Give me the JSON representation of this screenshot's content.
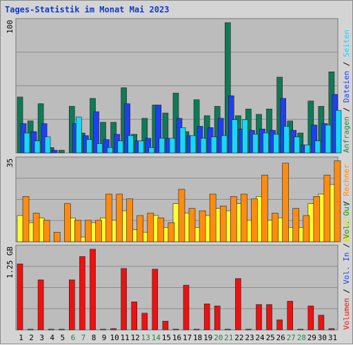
{
  "title": "Tages-Statistik im Monat Mai 2023",
  "colors": {
    "anfragen": "#0f7a57",
    "dateien": "#1e40f0",
    "seiten": "#19d6ff",
    "besuche": "#ffff33",
    "rechner": "#ff8c10",
    "volumen": "#ee1111",
    "weekend_label": "#1a8a45",
    "weekday_label": "#000000",
    "title": "#0f39d4"
  },
  "legend_right_top": [
    {
      "text": "Anfragen",
      "color": "#1a8a45"
    },
    {
      "text": " / ",
      "color": "#000000"
    },
    {
      "text": "Dateien",
      "color": "#1e40f0"
    },
    {
      "text": " / ",
      "color": "#000000"
    },
    {
      "text": "Seiten",
      "color": "#19d6ff"
    }
  ],
  "legend_right_middle": [
    {
      "text": "Besuche",
      "color": "#e0e010"
    },
    {
      "text": " / ",
      "color": "#000000"
    },
    {
      "text": "Rechner",
      "color": "#ff8c10"
    }
  ],
  "legend_right_bottom": [
    {
      "text": "Volumen",
      "color": "#ee1111"
    },
    {
      "text": " / ",
      "color": "#000000"
    },
    {
      "text": "Vol. In",
      "color": "#1e40f0"
    },
    {
      "text": " / ",
      "color": "#000000"
    },
    {
      "text": "Vol. Out",
      "color": "#1a8a45"
    }
  ],
  "chart_data": {
    "type": "bar",
    "title": "Tages-Statistik im Monat Mai 2023",
    "categories": [
      "1",
      "2",
      "3",
      "4",
      "5",
      "6",
      "7",
      "8",
      "9",
      "10",
      "11",
      "12",
      "13",
      "14",
      "15",
      "16",
      "17",
      "18",
      "19",
      "20",
      "21",
      "22",
      "23",
      "24",
      "25",
      "26",
      "27",
      "28",
      "29",
      "30",
      "31"
    ],
    "weekend_days": [
      "6",
      "7",
      "13",
      "14",
      "20",
      "21",
      "27",
      "28"
    ],
    "panels": [
      {
        "id": "hits",
        "max_label": "100",
        "ylim": [
          0,
          100
        ],
        "series": [
          {
            "name": "Anfragen",
            "values": [
              42,
              24,
              37,
              4,
              2,
              35,
              15,
              41,
              23,
              23,
              49,
              14,
              26,
              36,
              30,
              45,
              16,
              40,
              28,
              35,
              98,
              28,
              33,
              29,
              33,
              57,
              24,
              15,
              39,
              35,
              61
            ]
          },
          {
            "name": "Dateien",
            "values": [
              22,
              16,
              22,
              2,
              0,
              22,
              13,
              31,
              10,
              14,
              37,
              9,
              11,
              36,
              11,
              26,
              13,
              20,
              19,
              26,
              43,
              18,
              17,
              18,
              17,
              41,
              17,
              6,
              21,
              22,
              44
            ]
          },
          {
            "name": "Seiten",
            "values": [
              15,
              9,
              12,
              0,
              0,
              27,
              10,
              7,
              4,
              9,
              13,
              9,
              4,
              11,
              11,
              19,
              13,
              11,
              12,
              13,
              25,
              25,
              14,
              15,
              14,
              20,
              12,
              6,
              9,
              21,
              32
            ]
          }
        ]
      },
      {
        "id": "visits",
        "max_label": "35",
        "ylim": [
          0,
          35
        ],
        "series": [
          {
            "name": "Besuche",
            "values": [
              11,
              8,
              10,
              0,
              0,
              10,
              2,
              8,
              10,
              9,
              13,
              5,
              4,
              11,
              6,
              16,
              12,
              6,
              11,
              14,
              13,
              16,
              9,
              19,
              9,
              10,
              6,
              6,
              16,
              20,
              24
            ]
          },
          {
            "name": "Rechner",
            "values": [
              19,
              12,
              9,
              4,
              16,
              9,
              9,
              9,
              20,
              20,
              18,
              11,
              12,
              10,
              8,
              22,
              14,
              13,
              20,
              15,
              19,
              20,
              18,
              28,
              12,
              33,
              14,
              11,
              19,
              28,
              34
            ]
          }
        ]
      },
      {
        "id": "volume",
        "max_label": "1.25 GB",
        "ylim": [
          0,
          1.25
        ],
        "series": [
          {
            "name": "Volumen",
            "values": [
              0.99,
              0.01,
              0.75,
              0.01,
              0.01,
              0.75,
              1.1,
              1.21,
              0.01,
              0.02,
              0.92,
              0.42,
              0.25,
              0.91,
              0.13,
              0.01,
              0.67,
              0.01,
              0.39,
              0.36,
              0.01,
              0.77,
              0.01,
              0.38,
              0.38,
              0.15,
              0.43,
              0.01,
              0.36,
              0.22,
              0.02
            ]
          }
        ]
      }
    ]
  }
}
